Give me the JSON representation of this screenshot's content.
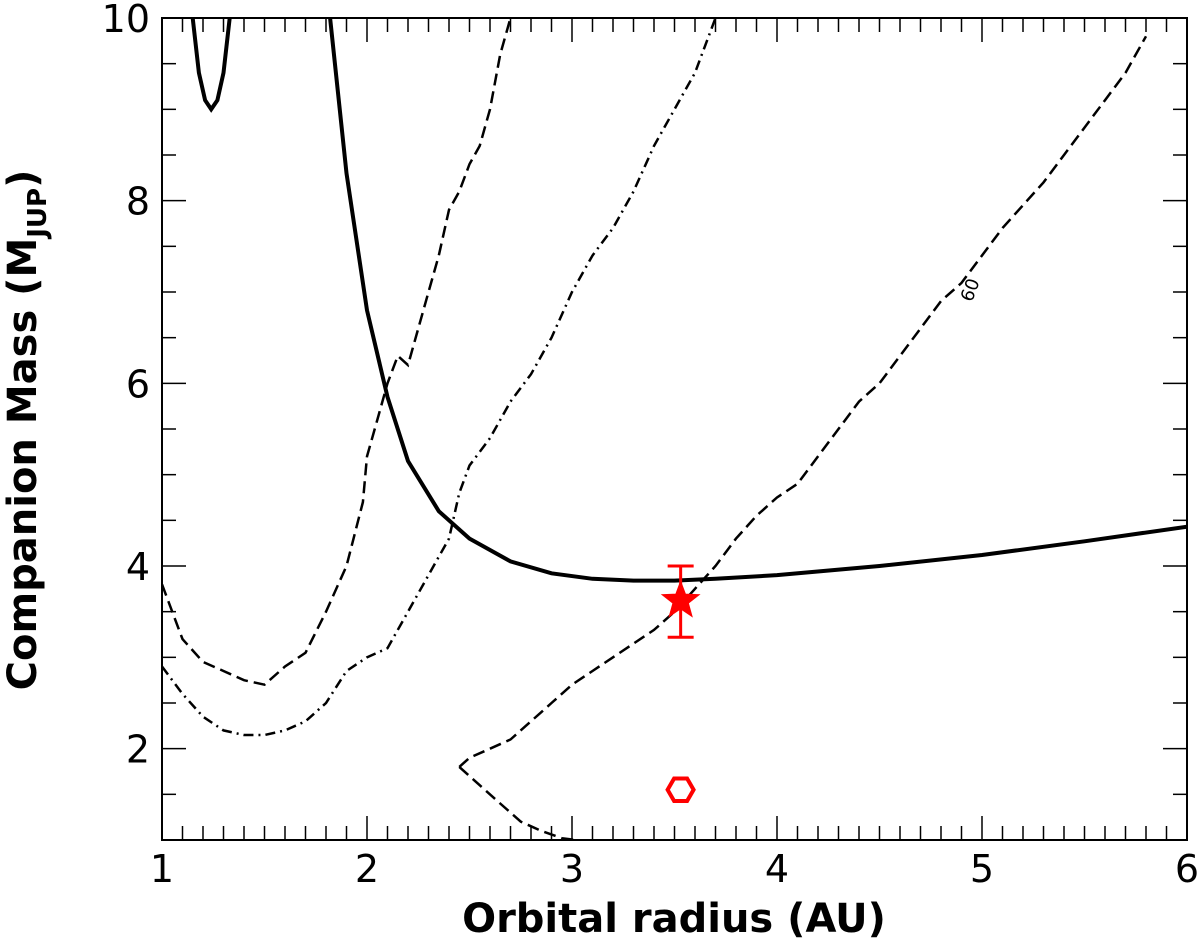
{
  "chart_data": {
    "type": "line",
    "xlabel": "Orbital radius (AU)",
    "ylabel_main": "Companion Mass (M",
    "ylabel_sub": "JUP",
    "ylabel_close": ")",
    "xlim": [
      1,
      6
    ],
    "ylim": [
      1,
      10
    ],
    "xticks": [
      1,
      2,
      3,
      4,
      5,
      6
    ],
    "yticks": [
      2,
      4,
      6,
      8,
      10
    ],
    "grid": false,
    "colors": {
      "axes": "#000000",
      "marker": "#ff0000"
    },
    "series": [
      {
        "style": "solid",
        "x": [
          1.82,
          1.9,
          2.0,
          2.1,
          2.2,
          2.35,
          2.5,
          2.7,
          2.9,
          3.1,
          3.3,
          3.5,
          3.7,
          4.0,
          4.5,
          5.0,
          5.5,
          6.0
        ],
        "y": [
          10.0,
          8.3,
          6.8,
          5.85,
          5.15,
          4.6,
          4.3,
          4.05,
          3.92,
          3.86,
          3.84,
          3.84,
          3.86,
          3.9,
          4.0,
          4.12,
          4.27,
          4.43
        ]
      },
      {
        "style": "solid",
        "x": [
          1.15,
          1.18,
          1.21,
          1.24,
          1.27,
          1.3,
          1.33
        ],
        "y": [
          10.0,
          9.4,
          9.1,
          9.0,
          9.1,
          9.4,
          10.0
        ]
      },
      {
        "style": "dashed",
        "x": [
          1.0,
          1.1,
          1.2,
          1.3,
          1.4,
          1.5,
          1.6,
          1.7,
          1.8,
          1.9,
          1.98,
          2.0,
          2.05,
          2.1,
          2.15,
          2.2,
          2.3,
          2.35,
          2.4,
          2.45,
          2.5,
          2.55,
          2.6,
          2.65,
          2.7
        ],
        "y": [
          3.8,
          3.2,
          2.95,
          2.85,
          2.75,
          2.7,
          2.9,
          3.05,
          3.5,
          4.0,
          4.7,
          5.2,
          5.6,
          6.0,
          6.3,
          6.2,
          7.0,
          7.4,
          7.9,
          8.1,
          8.4,
          8.6,
          9.0,
          9.6,
          10.0
        ]
      },
      {
        "style": "dash-dot",
        "x": [
          1.0,
          1.1,
          1.2,
          1.3,
          1.4,
          1.5,
          1.6,
          1.7,
          1.8,
          1.9,
          2.0,
          2.1,
          2.2,
          2.3,
          2.4,
          2.45,
          2.5,
          2.6,
          2.7,
          2.8,
          2.9,
          3.0,
          3.1,
          3.2,
          3.3,
          3.4,
          3.5,
          3.6,
          3.7
        ],
        "y": [
          2.9,
          2.6,
          2.35,
          2.2,
          2.15,
          2.15,
          2.2,
          2.3,
          2.5,
          2.85,
          3.0,
          3.1,
          3.5,
          3.9,
          4.3,
          4.8,
          5.1,
          5.4,
          5.8,
          6.1,
          6.5,
          7.0,
          7.4,
          7.7,
          8.1,
          8.6,
          9.0,
          9.4,
          10.0
        ]
      },
      {
        "style": "dashed",
        "x": [
          2.45,
          2.5,
          2.6,
          2.7,
          2.8,
          2.9,
          3.0,
          3.1,
          3.2,
          3.3,
          3.4,
          3.5,
          3.6,
          3.7,
          3.8,
          3.9,
          4.0,
          4.1,
          4.2,
          4.3,
          4.4,
          4.5,
          4.6,
          4.7,
          4.8,
          4.9,
          5.0,
          5.1,
          5.2,
          5.3,
          5.4,
          5.5,
          5.6,
          5.7,
          5.8
        ],
        "y": [
          1.8,
          1.9,
          2.0,
          2.1,
          2.3,
          2.5,
          2.7,
          2.85,
          3.0,
          3.15,
          3.3,
          3.5,
          3.75,
          4.0,
          4.3,
          4.55,
          4.75,
          4.9,
          5.2,
          5.5,
          5.8,
          6.0,
          6.3,
          6.6,
          6.9,
          7.1,
          7.4,
          7.7,
          7.95,
          8.2,
          8.5,
          8.8,
          9.1,
          9.4,
          9.8
        ]
      },
      {
        "style": "dashed",
        "x": [
          2.45,
          2.55,
          2.65,
          2.75,
          2.85,
          2.95,
          3.02
        ],
        "y": [
          1.8,
          1.6,
          1.4,
          1.2,
          1.1,
          1.02,
          1.0
        ]
      }
    ],
    "points": [
      {
        "name": "star",
        "x": 3.53,
        "y": 3.62,
        "err_low": 3.22,
        "err_high": 4.0
      },
      {
        "name": "hexagon",
        "x": 3.53,
        "y": 1.55
      }
    ],
    "annotations": [
      {
        "text": "60",
        "x": 4.97,
        "y": 7.0,
        "rotation": -70
      }
    ]
  }
}
